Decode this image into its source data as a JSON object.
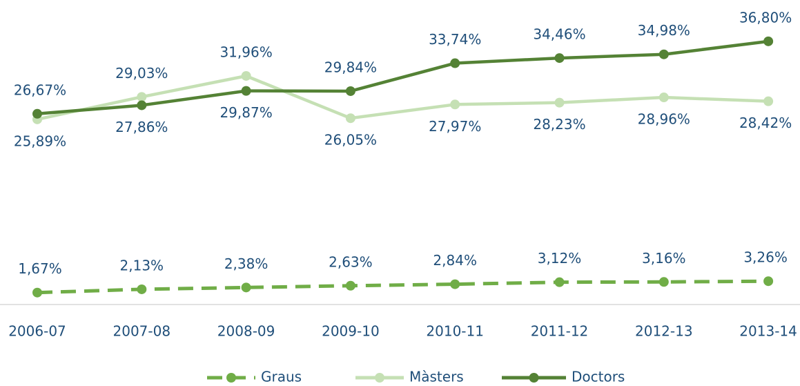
{
  "chart_data": {
    "type": "line",
    "categories": [
      "2006-07",
      "2007-08",
      "2008-09",
      "2009-10",
      "2010-11",
      "2011-12",
      "2012-13",
      "2013-14"
    ],
    "series": [
      {
        "name": "Graus",
        "color": "#70ad47",
        "dash": true,
        "values": [
          1.67,
          2.13,
          2.38,
          2.63,
          2.84,
          3.12,
          3.16,
          3.26
        ],
        "value_labels": [
          "1,67%",
          "2,13%",
          "2,38%",
          "2,63%",
          "2,84%",
          "3,12%",
          "3,16%",
          "3,26%"
        ]
      },
      {
        "name": "Màsters",
        "color": "#c5e0b4",
        "dash": false,
        "values": [
          25.89,
          29.03,
          31.96,
          26.05,
          27.97,
          28.23,
          28.96,
          28.42
        ],
        "value_labels": [
          "25,89%",
          "29,03%",
          "31,96%",
          "26,05%",
          "27,97%",
          "28,23%",
          "28,96%",
          "28,42%"
        ]
      },
      {
        "name": "Doctors",
        "color": "#548235",
        "dash": false,
        "values": [
          26.67,
          27.86,
          29.87,
          29.84,
          33.74,
          34.46,
          34.98,
          36.8
        ],
        "value_labels": [
          "26,67%",
          "27,86%",
          "29,87%",
          "29,84%",
          "33,74%",
          "34,46%",
          "34,98%",
          "36,80%"
        ]
      }
    ],
    "ylim": [
      0,
      42
    ],
    "legend": "bottom"
  }
}
